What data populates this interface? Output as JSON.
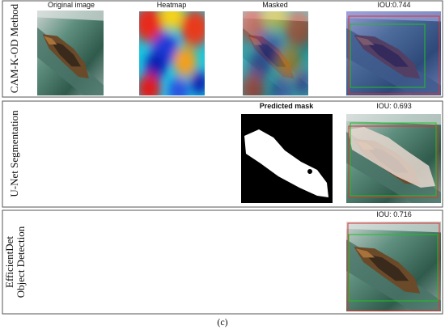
{
  "rows": [
    {
      "label": [
        "CAM-K-OD Method"
      ],
      "panels": [
        "Original image",
        "Heatmap",
        "Masked",
        "IOU:0.744"
      ]
    },
    {
      "label": [
        "U-Net Segmentation"
      ],
      "panels": [
        "Predicted mask",
        "IOU: 0.693"
      ]
    },
    {
      "label": [
        "EfficientDet",
        "Object Detection"
      ],
      "panels": [
        "IOU: 0.716"
      ]
    }
  ],
  "caption": "(c)"
}
